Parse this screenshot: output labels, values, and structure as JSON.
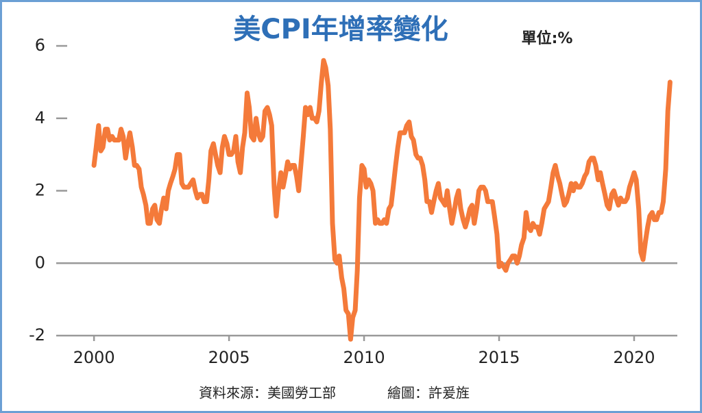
{
  "chart_data": {
    "type": "line",
    "title": "美CPI年增率變化",
    "unit_label": "單位:%",
    "source": "資料來源：美國勞工部",
    "author": "繪圖：許爰旌",
    "xlim": [
      1998.6,
      2021.6
    ],
    "xticks": [
      2000,
      2005,
      2010,
      2015,
      2020
    ],
    "ylim": [
      -2,
      6
    ],
    "yticks": [
      -2,
      0,
      2,
      4,
      6
    ],
    "x": [
      2000,
      2000.08,
      2000.17,
      2000.25,
      2000.33,
      2000.42,
      2000.5,
      2000.58,
      2000.67,
      2000.75,
      2000.83,
      2000.92,
      2001,
      2001.08,
      2001.17,
      2001.25,
      2001.33,
      2001.42,
      2001.5,
      2001.58,
      2001.67,
      2001.75,
      2001.83,
      2001.92,
      2002,
      2002.08,
      2002.17,
      2002.25,
      2002.33,
      2002.42,
      2002.5,
      2002.58,
      2002.67,
      2002.75,
      2002.83,
      2002.92,
      2003,
      2003.08,
      2003.17,
      2003.25,
      2003.33,
      2003.42,
      2003.5,
      2003.58,
      2003.67,
      2003.75,
      2003.83,
      2003.92,
      2004,
      2004.08,
      2004.17,
      2004.25,
      2004.33,
      2004.42,
      2004.5,
      2004.58,
      2004.67,
      2004.75,
      2004.83,
      2004.92,
      2005,
      2005.08,
      2005.17,
      2005.25,
      2005.33,
      2005.42,
      2005.5,
      2005.58,
      2005.67,
      2005.75,
      2005.83,
      2005.92,
      2006,
      2006.08,
      2006.17,
      2006.25,
      2006.33,
      2006.42,
      2006.5,
      2006.58,
      2006.67,
      2006.75,
      2006.83,
      2006.92,
      2007,
      2007.08,
      2007.17,
      2007.25,
      2007.33,
      2007.42,
      2007.5,
      2007.58,
      2007.67,
      2007.75,
      2007.83,
      2007.92,
      2008,
      2008.08,
      2008.17,
      2008.25,
      2008.33,
      2008.42,
      2008.5,
      2008.58,
      2008.67,
      2008.75,
      2008.83,
      2008.92,
      2009,
      2009.08,
      2009.17,
      2009.25,
      2009.33,
      2009.42,
      2009.5,
      2009.58,
      2009.67,
      2009.75,
      2009.83,
      2009.92,
      2010,
      2010.08,
      2010.17,
      2010.25,
      2010.33,
      2010.42,
      2010.5,
      2010.58,
      2010.67,
      2010.75,
      2010.83,
      2010.92,
      2011,
      2011.08,
      2011.17,
      2011.25,
      2011.33,
      2011.42,
      2011.5,
      2011.58,
      2011.67,
      2011.75,
      2011.83,
      2011.92,
      2012,
      2012.08,
      2012.17,
      2012.25,
      2012.33,
      2012.42,
      2012.5,
      2012.58,
      2012.67,
      2012.75,
      2012.83,
      2012.92,
      2013,
      2013.08,
      2013.17,
      2013.25,
      2013.33,
      2013.42,
      2013.5,
      2013.58,
      2013.67,
      2013.75,
      2013.83,
      2013.92,
      2014,
      2014.08,
      2014.17,
      2014.25,
      2014.33,
      2014.42,
      2014.5,
      2014.58,
      2014.67,
      2014.75,
      2014.83,
      2014.92,
      2015,
      2015.08,
      2015.17,
      2015.25,
      2015.33,
      2015.42,
      2015.5,
      2015.58,
      2015.67,
      2015.75,
      2015.83,
      2015.92,
      2016,
      2016.08,
      2016.17,
      2016.25,
      2016.33,
      2016.42,
      2016.5,
      2016.58,
      2016.67,
      2016.75,
      2016.83,
      2016.92,
      2017,
      2017.08,
      2017.17,
      2017.25,
      2017.33,
      2017.42,
      2017.5,
      2017.58,
      2017.67,
      2017.75,
      2017.83,
      2017.92,
      2018,
      2018.08,
      2018.17,
      2018.25,
      2018.33,
      2018.42,
      2018.5,
      2018.58,
      2018.67,
      2018.75,
      2018.83,
      2018.92,
      2019,
      2019.08,
      2019.17,
      2019.25,
      2019.33,
      2019.42,
      2019.5,
      2019.58,
      2019.67,
      2019.75,
      2019.83,
      2019.92,
      2020,
      2020.08,
      2020.17,
      2020.25,
      2020.33,
      2020.42,
      2020.5,
      2020.58,
      2020.67,
      2020.75,
      2020.83,
      2020.92,
      2021,
      2021.08,
      2021.17,
      2021.25,
      2021.33
    ],
    "series": [
      {
        "name": "CPI",
        "color": "#f47a3a",
        "values": [
          2.7,
          3.2,
          3.8,
          3.1,
          3.2,
          3.7,
          3.7,
          3.4,
          3.5,
          3.4,
          3.4,
          3.4,
          3.7,
          3.5,
          2.9,
          3.3,
          3.6,
          3.2,
          2.7,
          2.7,
          2.6,
          2.1,
          1.9,
          1.6,
          1.1,
          1.1,
          1.5,
          1.6,
          1.2,
          1.1,
          1.5,
          1.8,
          1.5,
          2.0,
          2.2,
          2.4,
          2.6,
          3.0,
          3.0,
          2.2,
          2.1,
          2.1,
          2.1,
          2.2,
          2.3,
          2.0,
          1.8,
          1.9,
          1.9,
          1.7,
          1.7,
          2.3,
          3.1,
          3.3,
          3.0,
          2.7,
          2.5,
          3.2,
          3.5,
          3.3,
          3.0,
          3.0,
          3.1,
          3.5,
          2.8,
          2.5,
          3.2,
          3.6,
          4.7,
          4.3,
          3.5,
          3.4,
          4.0,
          3.6,
          3.4,
          3.5,
          4.2,
          4.3,
          4.1,
          3.8,
          2.1,
          1.3,
          2.0,
          2.5,
          2.1,
          2.4,
          2.8,
          2.6,
          2.7,
          2.7,
          2.4,
          2.0,
          2.8,
          3.5,
          4.3,
          4.1,
          4.3,
          4.0,
          4.0,
          3.9,
          4.2,
          5.0,
          5.6,
          5.4,
          4.9,
          3.7,
          1.1,
          0.1,
          0.0,
          0.2,
          -0.4,
          -0.7,
          -1.3,
          -1.4,
          -2.1,
          -1.5,
          -1.3,
          -0.2,
          1.8,
          2.7,
          2.6,
          2.1,
          2.3,
          2.2,
          2.0,
          1.1,
          1.2,
          1.1,
          1.1,
          1.2,
          1.1,
          1.5,
          1.6,
          2.1,
          2.7,
          3.2,
          3.6,
          3.6,
          3.6,
          3.8,
          3.9,
          3.5,
          3.4,
          3.0,
          2.9,
          2.9,
          2.7,
          2.3,
          1.7,
          1.7,
          1.4,
          1.7,
          2.0,
          2.2,
          1.8,
          1.7,
          1.6,
          2.0,
          1.5,
          1.1,
          1.4,
          1.8,
          2.0,
          1.5,
          1.2,
          1.0,
          1.2,
          1.5,
          1.6,
          1.1,
          1.5,
          2.0,
          2.1,
          2.1,
          2.0,
          1.7,
          1.7,
          1.7,
          1.3,
          0.8,
          -0.1,
          0.0,
          -0.1,
          -0.2,
          0.0,
          0.1,
          0.2,
          0.2,
          0.0,
          0.2,
          0.5,
          0.7,
          1.4,
          1.0,
          0.9,
          1.1,
          1.0,
          1.0,
          0.8,
          1.1,
          1.5,
          1.6,
          1.7,
          2.1,
          2.5,
          2.7,
          2.4,
          2.2,
          1.9,
          1.6,
          1.7,
          1.9,
          2.2,
          2.0,
          2.2,
          2.1,
          2.1,
          2.2,
          2.4,
          2.5,
          2.8,
          2.9,
          2.9,
          2.7,
          2.3,
          2.5,
          2.2,
          1.9,
          1.6,
          1.5,
          1.9,
          2.0,
          1.8,
          1.6,
          1.8,
          1.7,
          1.7,
          1.8,
          2.1,
          2.3,
          2.5,
          2.3,
          1.5,
          0.3,
          0.1,
          0.6,
          1.0,
          1.3,
          1.4,
          1.2,
          1.2,
          1.4,
          1.4,
          1.7,
          2.6,
          4.2,
          5.0
        ]
      }
    ]
  }
}
